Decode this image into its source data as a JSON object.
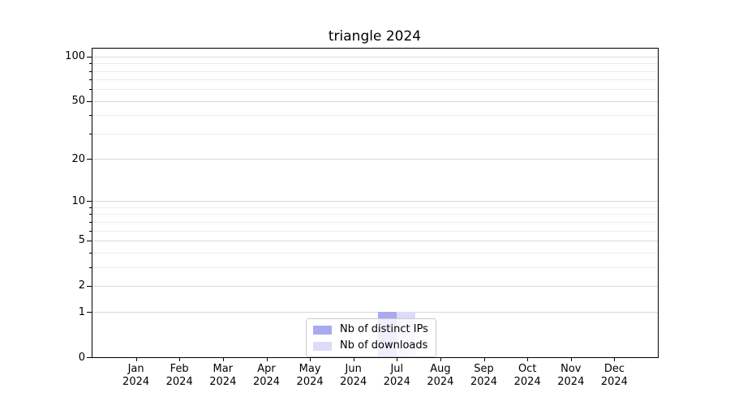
{
  "chart_data": {
    "type": "bar",
    "title": "triangle 2024",
    "categories": [
      "Jan",
      "Feb",
      "Mar",
      "Apr",
      "May",
      "Jun",
      "Jul",
      "Aug",
      "Sep",
      "Oct",
      "Nov",
      "Dec"
    ],
    "year": "2024",
    "series": [
      {
        "name": "Nb of distinct IPs",
        "color": "#a9a9f0",
        "values": [
          0,
          0,
          0,
          0,
          0,
          0,
          1,
          0,
          0,
          0,
          0,
          0
        ]
      },
      {
        "name": "Nb of downloads",
        "color": "#dcdcf8",
        "values": [
          0,
          0,
          0,
          0,
          0,
          0,
          1,
          0,
          0,
          0,
          0,
          0
        ]
      }
    ],
    "y_scale": "log1p",
    "y_major_ticks": [
      0,
      1,
      2,
      5,
      10,
      20,
      50,
      100
    ],
    "y_minor_ticks": [
      3,
      4,
      6,
      7,
      8,
      9,
      30,
      40,
      60,
      70,
      80,
      90
    ],
    "ylim": [
      0,
      113
    ],
    "xlabel": "",
    "ylabel": "",
    "grid": true,
    "legend_position": "bottom-center",
    "colors": {
      "background": "#ffffff",
      "spine": "#000000",
      "grid_major": "#d9d9d9",
      "grid_minor": "#ececec",
      "legend_border": "#cccccc"
    }
  }
}
